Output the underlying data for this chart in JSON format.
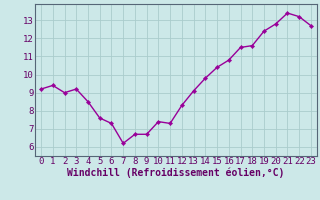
{
  "x": [
    0,
    1,
    2,
    3,
    4,
    5,
    6,
    7,
    8,
    9,
    10,
    11,
    12,
    13,
    14,
    15,
    16,
    17,
    18,
    19,
    20,
    21,
    22,
    23
  ],
  "y": [
    9.2,
    9.4,
    9.0,
    9.2,
    8.5,
    7.6,
    7.3,
    6.2,
    6.7,
    6.7,
    7.4,
    7.3,
    8.3,
    9.1,
    9.8,
    10.4,
    10.8,
    11.5,
    11.6,
    12.4,
    12.8,
    13.4,
    13.2,
    12.7
  ],
  "line_color": "#990099",
  "marker": "D",
  "marker_size": 2.2,
  "bg_color": "#cce8e8",
  "grid_color": "#b0d8d8",
  "xlabel": "Windchill (Refroidissement éolien,°C)",
  "xlabel_color": "#660066",
  "tick_color": "#660066",
  "ylim": [
    5.5,
    13.9
  ],
  "xlim": [
    -0.5,
    23.5
  ],
  "yticks": [
    6,
    7,
    8,
    9,
    10,
    11,
    12,
    13
  ],
  "xticks": [
    0,
    1,
    2,
    3,
    4,
    5,
    6,
    7,
    8,
    9,
    10,
    11,
    12,
    13,
    14,
    15,
    16,
    17,
    18,
    19,
    20,
    21,
    22,
    23
  ],
  "linewidth": 1.0,
  "font_size": 6.5
}
